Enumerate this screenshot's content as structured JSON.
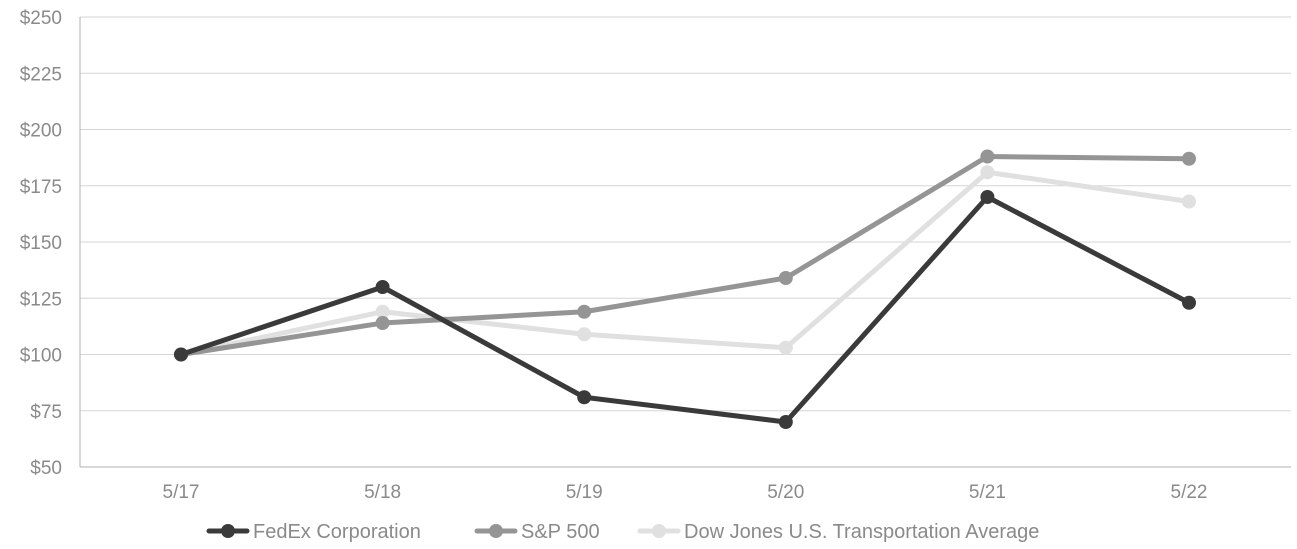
{
  "chart_data": {
    "type": "line",
    "categories": [
      "5/17",
      "5/18",
      "5/19",
      "5/20",
      "5/21",
      "5/22"
    ],
    "y_ticks": [
      "$50",
      "$75",
      "$100",
      "$125",
      "$150",
      "$175",
      "$200",
      "$225",
      "$250"
    ],
    "ylim": [
      50,
      250
    ],
    "grid": true,
    "legend_position": "bottom",
    "series": [
      {
        "name": "FedEx Corporation",
        "color": "#3a3a3a",
        "values": [
          100,
          130,
          81,
          70,
          170,
          123
        ]
      },
      {
        "name": "S&P 500",
        "color": "#959595",
        "values": [
          100,
          114,
          119,
          134,
          188,
          187
        ]
      },
      {
        "name": "Dow Jones U.S. Transportation Average",
        "color": "#e0e0e0",
        "values": [
          100,
          119,
          109,
          103,
          181,
          168
        ]
      }
    ]
  }
}
